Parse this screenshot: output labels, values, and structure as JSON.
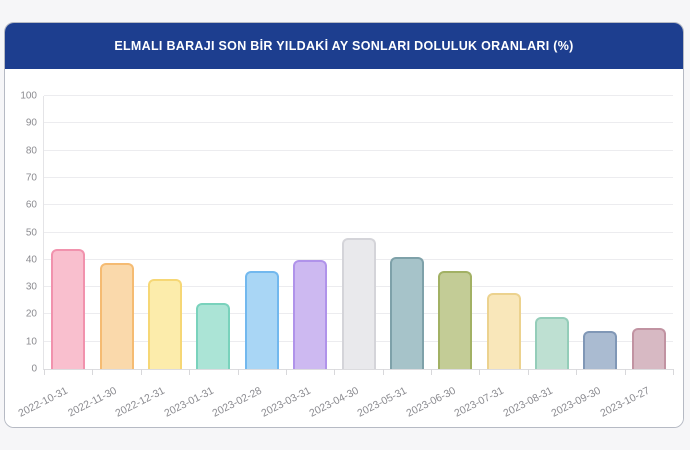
{
  "page": {
    "background_color": "#f6f6f8",
    "panel_border_color": "#b6bac4"
  },
  "header": {
    "title": "ELMALI BARAJI SON BİR YILDAKİ AY SONLARI DOLULUK ORANLARI (%)",
    "background_color": "#1d3e8f",
    "text_color": "#ffffff"
  },
  "chart_data": {
    "type": "bar",
    "title": "ELMALI BARAJI SON BİR YILDAKİ AY SONLARI DOLULUK ORANLARI (%)",
    "categories": [
      "2022-10-31",
      "2022-11-30",
      "2022-12-31",
      "2023-01-31",
      "2023-02-28",
      "2023-03-31",
      "2023-04-30",
      "2023-05-31",
      "2023-06-30",
      "2023-07-31",
      "2023-08-31",
      "2023-09-30",
      "2023-10-27"
    ],
    "values": [
      44,
      39,
      33,
      24,
      36,
      40,
      48,
      41,
      36,
      28,
      19,
      14,
      15
    ],
    "xlabel": "",
    "ylabel": "",
    "ylim": [
      0,
      100
    ],
    "ytick_step": 10,
    "grid": true,
    "legend_position": "none",
    "gridline_color": "#ececef",
    "axis_label_color": "#8b8b90",
    "bar_fill_colors": [
      "#f9bfce",
      "#fad9ab",
      "#fcecab",
      "#abe4d6",
      "#a9d6f5",
      "#cdb9f1",
      "#e9e9ec",
      "#a6c3c9",
      "#c3cc96",
      "#f9e7ba",
      "#bee0d2",
      "#aabbd1",
      "#d7b9c3"
    ],
    "bar_border_colors": [
      "#f192ad",
      "#f5bb72",
      "#f6d775",
      "#79d2bc",
      "#72b8ee",
      "#b093ea",
      "#d4d4d9",
      "#7ea1a9",
      "#a2b164",
      "#ecd28e",
      "#94cdb9",
      "#8097b6",
      "#c193a2"
    ]
  }
}
